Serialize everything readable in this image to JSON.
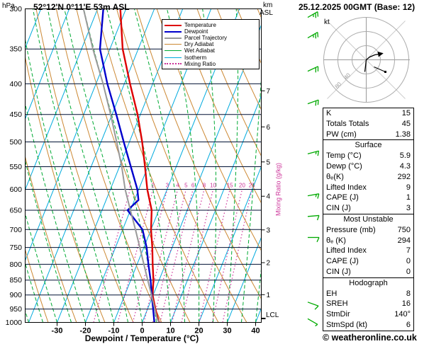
{
  "header": {
    "station": "52°12'N 0°11'E 53m ASL",
    "datetime": "25.12.2025 00GMT (Base: 12)"
  },
  "footer": {
    "credit": "© weatheronline.co.uk"
  },
  "axes": {
    "pressure_label": "hPa",
    "alt_label_km": "km",
    "alt_label_asl": "ASL",
    "x_title": "Dewpoint / Temperature (°C)",
    "mixing_label": "Mixing Ratio (g/kg)",
    "lcl_label": "LCL"
  },
  "legend": {
    "items": [
      {
        "label": "Temperature",
        "sample": "2.5px solid #dd0000"
      },
      {
        "label": "Dewpoint",
        "sample": "2.5px solid #0000cc"
      },
      {
        "label": "Parcel Trajectory",
        "sample": "2px solid #999999"
      },
      {
        "label": "Dry Adiabat",
        "sample": "1.5px solid #cc8833"
      },
      {
        "label": "Wet Adiabat",
        "sample": "1.5px solid #00aa33"
      },
      {
        "label": "Isotherm",
        "sample": "1.5px solid #00aadd"
      },
      {
        "label": "Mixing Ratio",
        "sample": "2px dotted #cc3399"
      }
    ]
  },
  "chart_data": {
    "type": "skewt_sounding",
    "pressure_axis_hpa": [
      300,
      350,
      400,
      450,
      500,
      550,
      600,
      650,
      700,
      750,
      800,
      850,
      900,
      950,
      1000
    ],
    "temp_axis_c": [
      -30,
      -20,
      -10,
      0,
      10,
      20,
      30,
      40
    ],
    "km_axis": [
      1,
      2,
      3,
      4,
      5,
      6,
      7
    ],
    "km_pressures": [
      899,
      795,
      701,
      616,
      540,
      472,
      411
    ],
    "lcl_pressure": 985,
    "mixing_ratio_lines_gkg": [
      1,
      2,
      3,
      4,
      5,
      6,
      8,
      10,
      15,
      20,
      25
    ],
    "background": {
      "isotherm_color": "#00aadd",
      "dry_adiabat_color": "#cc8833",
      "wet_adiabat_color": "#00aa33",
      "mixing_color": "#cc3399",
      "pressure_line_color": "#001133",
      "wind_barb_color": "#00aa00"
    },
    "series": [
      {
        "name": "Temperature",
        "color": "#dd0000",
        "width": 2.4,
        "points": [
          [
            1000,
            5.9
          ],
          [
            950,
            2.8
          ],
          [
            900,
            -0.2
          ],
          [
            850,
            -2.0
          ],
          [
            800,
            -4.5
          ],
          [
            750,
            -7.0
          ],
          [
            700,
            -10.0
          ],
          [
            650,
            -12.5
          ],
          [
            600,
            -17.0
          ],
          [
            550,
            -21.0
          ],
          [
            500,
            -25.5
          ],
          [
            450,
            -31.0
          ],
          [
            400,
            -38.0
          ],
          [
            350,
            -45.5
          ],
          [
            300,
            -52.0
          ]
        ]
      },
      {
        "name": "Dewpoint",
        "color": "#0000cc",
        "width": 2.4,
        "points": [
          [
            1000,
            4.3
          ],
          [
            950,
            2.0
          ],
          [
            900,
            -0.5
          ],
          [
            850,
            -3.0
          ],
          [
            800,
            -6.0
          ],
          [
            750,
            -9.0
          ],
          [
            700,
            -13.0
          ],
          [
            650,
            -21.0
          ],
          [
            625,
            -18.6
          ],
          [
            600,
            -20.5
          ],
          [
            550,
            -26.0
          ],
          [
            500,
            -32.0
          ],
          [
            450,
            -38.5
          ],
          [
            400,
            -46.0
          ],
          [
            350,
            -53.5
          ],
          [
            300,
            -58.0
          ]
        ]
      },
      {
        "name": "Parcel Trajectory",
        "color": "#999999",
        "width": 2,
        "points": [
          [
            1000,
            5.9
          ],
          [
            985,
            4.7
          ],
          [
            950,
            2.6
          ],
          [
            900,
            -0.6
          ],
          [
            850,
            -4.0
          ],
          [
            800,
            -7.6
          ],
          [
            750,
            -11.4
          ],
          [
            700,
            -15.5
          ],
          [
            650,
            -20.0
          ],
          [
            600,
            -24.8
          ],
          [
            550,
            -29.2
          ],
          [
            500,
            -34.5
          ],
          [
            450,
            -40.5
          ],
          [
            400,
            -47.5
          ],
          [
            350,
            -56.0
          ],
          [
            300,
            -65.0
          ]
        ]
      }
    ],
    "winds_kt": [
      [
        305,
        60,
        25
      ],
      [
        330,
        60,
        25
      ],
      [
        375,
        65,
        20
      ],
      [
        425,
        70,
        20
      ],
      [
        515,
        75,
        15
      ],
      [
        605,
        80,
        15
      ],
      [
        655,
        85,
        10
      ],
      [
        710,
        90,
        10
      ],
      [
        910,
        110,
        10
      ],
      [
        970,
        120,
        5
      ]
    ]
  },
  "hodograph": {
    "unit": "kt",
    "rings": [
      20,
      40,
      60
    ],
    "ring_labels": [
      "40",
      "80"
    ],
    "trace_kt": [
      [
        -2,
        -17
      ],
      [
        -1,
        -9
      ],
      [
        0,
        0
      ],
      [
        5,
        4
      ],
      [
        12,
        7
      ],
      [
        23,
        9
      ]
    ],
    "storm_marker": [
      [
        11,
        -10
      ],
      [
        27,
        -17
      ]
    ]
  },
  "table": {
    "sections": [
      {
        "header": null,
        "rows": [
          [
            "K",
            "15"
          ],
          [
            "Totals Totals",
            "45"
          ],
          [
            "PW (cm)",
            "1.38"
          ]
        ]
      },
      {
        "header": "Surface",
        "rows": [
          [
            "Temp (°C)",
            "5.9"
          ],
          [
            "Dewp (°C)",
            "4.3"
          ],
          [
            "θₑ(K)",
            "292"
          ],
          [
            "Lifted Index",
            "9"
          ],
          [
            "CAPE (J)",
            "1"
          ],
          [
            "CIN (J)",
            "3"
          ]
        ]
      },
      {
        "header": "Most Unstable",
        "rows": [
          [
            "Pressure (mb)",
            "750"
          ],
          [
            "θₑ (K)",
            "294"
          ],
          [
            "Lifted Index",
            "7"
          ],
          [
            "CAPE (J)",
            "0"
          ],
          [
            "CIN (J)",
            "0"
          ]
        ]
      },
      {
        "header": "Hodograph",
        "rows": [
          [
            "EH",
            "8"
          ],
          [
            "SREH",
            "16"
          ],
          [
            "StmDir",
            "140°"
          ],
          [
            "StmSpd (kt)",
            "6"
          ]
        ]
      }
    ]
  }
}
